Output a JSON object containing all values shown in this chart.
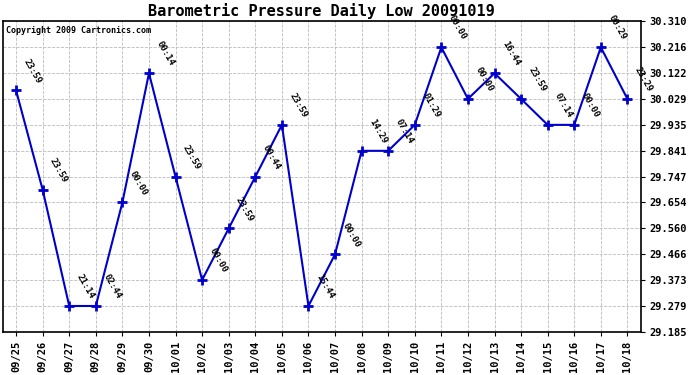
{
  "title": "Barometric Pressure Daily Low 20091019",
  "copyright": "Copyright 2009 Cartronics.com",
  "x_labels": [
    "09/25",
    "09/26",
    "09/27",
    "09/28",
    "09/29",
    "09/30",
    "10/01",
    "10/02",
    "10/03",
    "10/04",
    "10/05",
    "10/06",
    "10/07",
    "10/08",
    "10/09",
    "10/10",
    "10/11",
    "10/12",
    "10/13",
    "10/14",
    "10/15",
    "10/16",
    "10/17",
    "10/18"
  ],
  "y_values": [
    30.06,
    29.7,
    29.279,
    29.279,
    29.654,
    30.122,
    29.747,
    29.373,
    29.56,
    29.747,
    29.935,
    29.279,
    29.466,
    29.841,
    29.841,
    29.935,
    30.216,
    30.029,
    30.122,
    30.029,
    29.935,
    29.935,
    30.216,
    30.029
  ],
  "point_labels": [
    "23:59",
    "23:59",
    "21:14",
    "02:44",
    "00:00",
    "00:14",
    "23:59",
    "00:00",
    "23:59",
    "00:44",
    "23:59",
    "15:44",
    "00:00",
    "14:29",
    "07:14",
    "01:29",
    "00:00",
    "00:00",
    "16:44",
    "23:59",
    "07:14",
    "00:00",
    "00:29",
    "23:29"
  ],
  "ylim": [
    29.185,
    30.31
  ],
  "yticks": [
    29.185,
    29.279,
    29.373,
    29.466,
    29.56,
    29.654,
    29.747,
    29.841,
    29.935,
    30.029,
    30.122,
    30.216,
    30.31
  ],
  "line_color": "#0000cc",
  "marker_color": "#0000cc",
  "bg_color": "#ffffff",
  "grid_color": "#bbbbbb",
  "title_fontsize": 11,
  "tick_fontsize": 7.5,
  "label_fontsize": 6.5
}
